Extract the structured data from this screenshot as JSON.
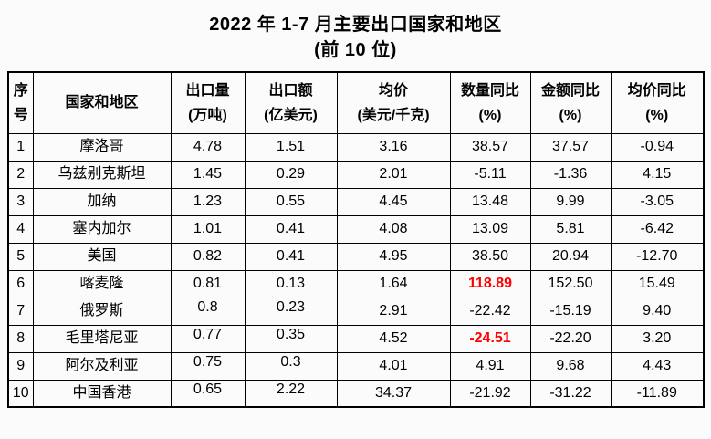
{
  "title": "2022 年 1-7 月主要出口国家和地区",
  "subtitle": "(前 10 位)",
  "colors": {
    "background": "#fbfbfb",
    "border": "#000000",
    "text": "#000000",
    "highlight_red": "#ff0000"
  },
  "table": {
    "headers": [
      {
        "line1": "序",
        "line2": "号"
      },
      {
        "line1": "国家和地区",
        "line2": ""
      },
      {
        "line1": "出口量",
        "line2": "(万吨)"
      },
      {
        "line1": "出口额",
        "line2": "(亿美元)"
      },
      {
        "line1": "均价",
        "line2": "(美元/千克)"
      },
      {
        "line1": "数量同比",
        "line2": "(%)"
      },
      {
        "line1": "金额同比",
        "line2": "(%)"
      },
      {
        "line1": "均价同比",
        "line2": "(%)"
      }
    ],
    "rows": [
      {
        "rank": "1",
        "country": "摩洛哥",
        "qty": "4.78",
        "amt": "1.51",
        "price": "3.16",
        "qty_yoy": "38.57",
        "amt_yoy": "37.57",
        "price_yoy": "-0.94",
        "qty_yoy_red": false,
        "qty_amt_top": false
      },
      {
        "rank": "2",
        "country": "乌兹别克斯坦",
        "qty": "1.45",
        "amt": "0.29",
        "price": "2.01",
        "qty_yoy": "-5.11",
        "amt_yoy": "-1.36",
        "price_yoy": "4.15",
        "qty_yoy_red": false,
        "qty_amt_top": false
      },
      {
        "rank": "3",
        "country": "加纳",
        "qty": "1.23",
        "amt": "0.55",
        "price": "4.45",
        "qty_yoy": "13.48",
        "amt_yoy": "9.99",
        "price_yoy": "-3.05",
        "qty_yoy_red": false,
        "qty_amt_top": false
      },
      {
        "rank": "4",
        "country": "塞内加尔",
        "qty": "1.01",
        "amt": "0.41",
        "price": "4.08",
        "qty_yoy": "13.09",
        "amt_yoy": "5.81",
        "price_yoy": "-6.42",
        "qty_yoy_red": false,
        "qty_amt_top": false
      },
      {
        "rank": "5",
        "country": "美国",
        "qty": "0.82",
        "amt": "0.41",
        "price": "4.95",
        "qty_yoy": "38.50",
        "amt_yoy": "20.94",
        "price_yoy": "-12.70",
        "qty_yoy_red": false,
        "qty_amt_top": false
      },
      {
        "rank": "6",
        "country": "喀麦隆",
        "qty": "0.81",
        "amt": "0.13",
        "price": "1.64",
        "qty_yoy": "118.89",
        "amt_yoy": "152.50",
        "price_yoy": "15.49",
        "qty_yoy_red": true,
        "qty_amt_top": false
      },
      {
        "rank": "7",
        "country": "俄罗斯",
        "qty": "0.8",
        "amt": "0.23",
        "price": "2.91",
        "qty_yoy": "-22.42",
        "amt_yoy": "-15.19",
        "price_yoy": "9.40",
        "qty_yoy_red": false,
        "qty_amt_top": true
      },
      {
        "rank": "8",
        "country": "毛里塔尼亚",
        "qty": "0.77",
        "amt": "0.35",
        "price": "4.52",
        "qty_yoy": "-24.51",
        "amt_yoy": "-22.20",
        "price_yoy": "3.20",
        "qty_yoy_red": true,
        "qty_amt_top": true
      },
      {
        "rank": "9",
        "country": "阿尔及利亚",
        "qty": "0.75",
        "amt": "0.3",
        "price": "4.01",
        "qty_yoy": "4.91",
        "amt_yoy": "9.68",
        "price_yoy": "4.43",
        "qty_yoy_red": false,
        "qty_amt_top": true
      },
      {
        "rank": "10",
        "country": "中国香港",
        "qty": "0.65",
        "amt": "2.22",
        "price": "34.37",
        "qty_yoy": "-21.92",
        "amt_yoy": "-31.22",
        "price_yoy": "-11.89",
        "qty_yoy_red": false,
        "qty_amt_top": true
      }
    ]
  }
}
